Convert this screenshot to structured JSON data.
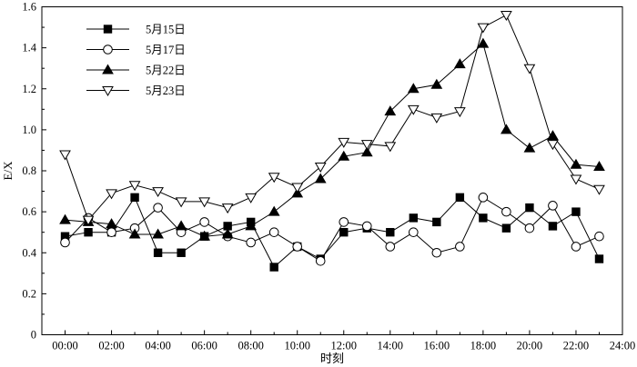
{
  "chart_data": {
    "type": "line",
    "title": "",
    "xlabel": "时刻",
    "ylabel": "E/X",
    "xlim": [
      -1,
      24
    ],
    "ylim": [
      0,
      1.6
    ],
    "x_ticks": [
      "00:00",
      "02:00",
      "04:00",
      "06:00",
      "08:00",
      "10:00",
      "12:00",
      "14:00",
      "16:00",
      "18:00",
      "20:00",
      "22:00",
      "24:00"
    ],
    "y_ticks": [
      "0",
      "0.2",
      "0.4",
      "0.6",
      "0.8",
      "1.0",
      "1.2",
      "1.4",
      "1.6"
    ],
    "grid": false,
    "legend_position": "top-left",
    "x": [
      0,
      1,
      2,
      3,
      4,
      5,
      6,
      7,
      8,
      9,
      10,
      11,
      12,
      13,
      14,
      15,
      16,
      17,
      18,
      19,
      20,
      21,
      22,
      23
    ],
    "series": [
      {
        "name": "5月15日",
        "marker": "filled-square",
        "values": [
          0.48,
          0.5,
          0.5,
          0.67,
          0.4,
          0.4,
          0.48,
          0.53,
          0.55,
          0.33,
          0.43,
          0.37,
          0.5,
          0.52,
          0.5,
          0.57,
          0.55,
          0.67,
          0.57,
          0.52,
          0.62,
          0.53,
          0.6,
          0.37
        ]
      },
      {
        "name": "5月17日",
        "marker": "open-circle",
        "values": [
          0.45,
          0.57,
          0.5,
          0.52,
          0.62,
          0.5,
          0.55,
          0.48,
          0.45,
          0.5,
          0.43,
          0.36,
          0.55,
          0.53,
          0.43,
          0.5,
          0.4,
          0.43,
          0.67,
          0.6,
          0.52,
          0.63,
          0.43,
          0.48
        ]
      },
      {
        "name": "5月22日",
        "marker": "filled-triangle-up",
        "values": [
          0.56,
          0.55,
          0.54,
          0.49,
          0.49,
          0.53,
          0.48,
          0.49,
          0.53,
          0.6,
          0.69,
          0.76,
          0.87,
          0.89,
          1.09,
          1.2,
          1.22,
          1.32,
          1.42,
          1.0,
          0.91,
          0.97,
          0.83,
          0.82
        ]
      },
      {
        "name": "5月23日",
        "marker": "open-triangle-down",
        "values": [
          0.88,
          0.56,
          0.69,
          0.73,
          0.7,
          0.65,
          0.65,
          0.62,
          0.67,
          0.77,
          0.72,
          0.82,
          0.94,
          0.93,
          0.92,
          1.1,
          1.06,
          1.09,
          1.5,
          1.56,
          1.3,
          0.93,
          0.76,
          0.71
        ]
      }
    ]
  }
}
